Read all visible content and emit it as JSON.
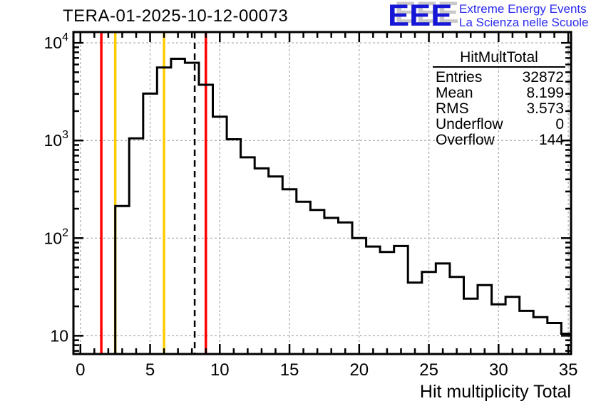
{
  "title": "TERA-01-2025-10-12-00073",
  "logo": {
    "acronym": "EEE",
    "line1": "Extreme Energy Events",
    "line2": "La Scienza nelle Scuole",
    "text_color": "#2a2aee",
    "acronym_color": "#1616d6",
    "shadow_color": "#c9c9c9"
  },
  "stats": {
    "title": "HitMultTotal",
    "rows": [
      {
        "label": "Entries",
        "value": "32872"
      },
      {
        "label": "Mean",
        "value": "8.199"
      },
      {
        "label": "RMS",
        "value": "3.573"
      },
      {
        "label": "Underflow",
        "value": "0"
      },
      {
        "label": "Overflow",
        "value": "144"
      }
    ]
  },
  "chart_data": {
    "type": "bar",
    "subtype": "step-histogram-log-y",
    "title": "TERA-01-2025-10-12-00073",
    "xlabel": "Hit multiplicity Total",
    "ylabel": "",
    "x_range": [
      -0.5,
      35.2
    ],
    "y_scale": "log",
    "y_range": [
      6.5,
      12900
    ],
    "grid": true,
    "legend_position": "none",
    "bin_width": 1,
    "categories": [
      0,
      1,
      2,
      3,
      4,
      5,
      6,
      7,
      8,
      9,
      10,
      11,
      12,
      13,
      14,
      15,
      16,
      17,
      18,
      19,
      20,
      21,
      22,
      23,
      24,
      25,
      26,
      27,
      28,
      29,
      30,
      31,
      32,
      33,
      34,
      35
    ],
    "values": [
      0,
      0,
      0,
      213,
      1050,
      3020,
      5600,
      6870,
      6250,
      3720,
      1750,
      1030,
      672,
      518,
      428,
      316,
      236,
      194,
      161,
      145,
      100,
      82,
      72,
      83,
      35,
      45,
      55,
      40,
      24,
      33,
      21,
      25,
      18,
      15.5,
      13.5,
      10.5
    ],
    "x_major_ticks": [
      0,
      5,
      10,
      15,
      20,
      25,
      30,
      35
    ],
    "x_tick_labels": [
      "0",
      "5",
      "10",
      "15",
      "20",
      "25",
      "30",
      "35"
    ],
    "y_major_ticks": [
      10,
      100,
      1000,
      10000
    ],
    "y_tick_labels": [
      {
        "base": "10",
        "exp": "",
        "value": 10
      },
      {
        "base": "10",
        "exp": "2",
        "value": 100
      },
      {
        "base": "10",
        "exp": "3",
        "value": 1000
      },
      {
        "base": "10",
        "exp": "4",
        "value": 10000
      }
    ],
    "marker_lines": [
      {
        "x": 1.5,
        "color": "#ff0000",
        "style": "solid",
        "name": "red-cut-low"
      },
      {
        "x": 2.5,
        "color": "#ffcc00",
        "style": "solid",
        "name": "yellow-cut-low"
      },
      {
        "x": 6.0,
        "color": "#ffcc00",
        "style": "solid",
        "name": "yellow-cut-high"
      },
      {
        "x": 8.199,
        "color": "#000000",
        "style": "dashed",
        "name": "mean-line"
      },
      {
        "x": 9.0,
        "color": "#ff0000",
        "style": "solid",
        "name": "red-cut-high"
      }
    ],
    "line_color": "#000000",
    "grid_color": "#aaaaaa",
    "annotations": [
      "stats-box drawn transparent over plot, header underlined"
    ]
  }
}
